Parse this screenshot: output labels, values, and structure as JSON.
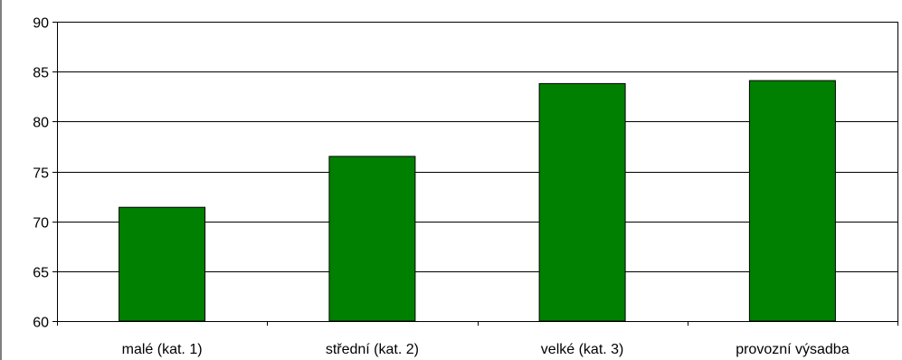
{
  "chart_data": {
    "type": "bar",
    "title": "",
    "xlabel": "",
    "ylabel": "",
    "categories": [
      "malé (kat. 1)",
      "střední (kat. 2)",
      "velké (kat. 3)",
      "provozní výsadba"
    ],
    "values": [
      71.4,
      76.5,
      83.8,
      84.1
    ],
    "ylim": [
      60,
      90
    ],
    "yticks": [
      "60",
      "65",
      "70",
      "75",
      "80",
      "85",
      "90"
    ],
    "ytick_values": [
      60,
      65,
      70,
      75,
      80,
      85,
      90
    ],
    "grid": true,
    "legend": "none",
    "colors": {
      "bar_fill": "#008000",
      "bar_stroke": "#000000",
      "grid": "#000000",
      "axis": "#000000",
      "background": "#ffffff"
    }
  }
}
